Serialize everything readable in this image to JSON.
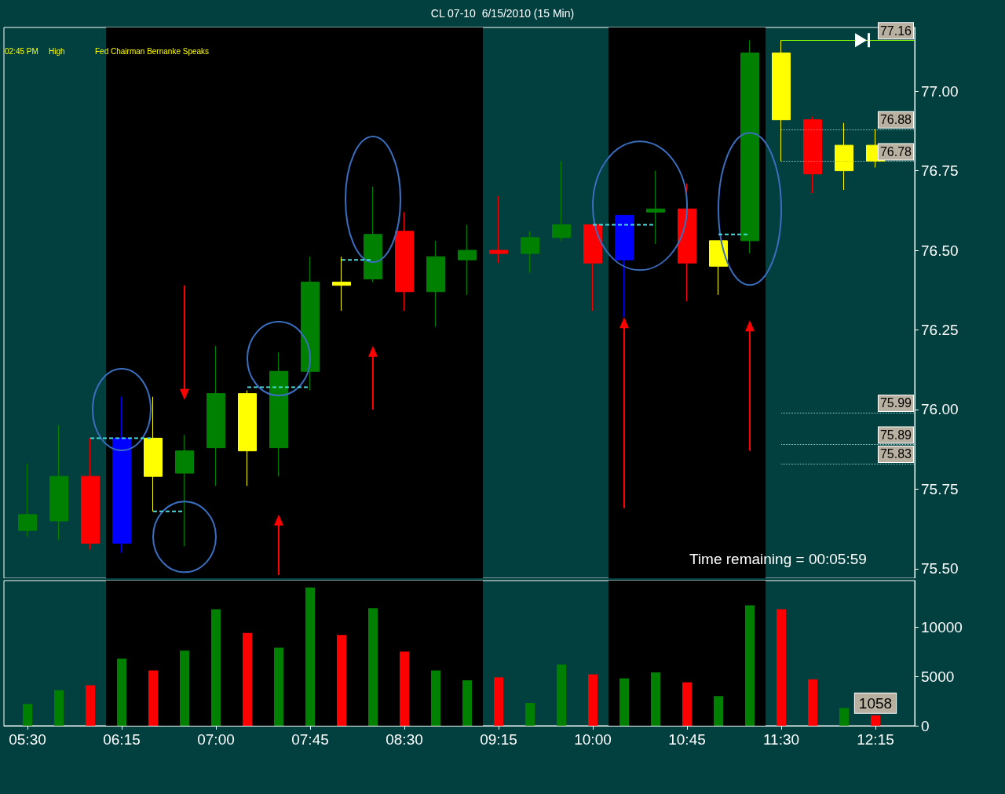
{
  "chart_data": [
    {
      "type": "candlestick",
      "title": "CL 07-10  6/15/2010 (15 Min)",
      "annotations": [
        "02:45 PM",
        "High",
        "Fed Chairman Bernanke Speaks",
        "Time remaining = 00:05:59"
      ],
      "x": [
        5.5,
        5.75,
        6,
        6.25,
        6.5,
        6.75,
        7,
        7.25,
        7.5,
        7.75,
        8,
        8.25,
        8.5,
        8.75,
        9,
        9.25,
        9.5,
        9.75,
        10,
        10.25,
        10.5,
        10.75,
        11,
        11.25,
        11.5,
        11.75,
        12,
        12.25
      ],
      "ohlc": [
        [
          75.62,
          75.83,
          75.6,
          75.67
        ],
        [
          75.65,
          75.95,
          75.59,
          75.79
        ],
        [
          75.79,
          75.91,
          75.56,
          75.58
        ],
        [
          75.58,
          76.04,
          75.55,
          75.91
        ],
        [
          75.91,
          76.04,
          75.68,
          75.79
        ],
        [
          75.8,
          75.92,
          75.57,
          75.87
        ],
        [
          75.88,
          76.2,
          75.76,
          76.05
        ],
        [
          76.05,
          76.06,
          75.76,
          75.87
        ],
        [
          75.88,
          76.18,
          75.79,
          76.12
        ],
        [
          76.12,
          76.48,
          76.06,
          76.4
        ],
        [
          76.4,
          76.48,
          76.31,
          76.39
        ],
        [
          76.41,
          76.7,
          76.4,
          76.55
        ],
        [
          76.56,
          76.62,
          76.31,
          76.37
        ],
        [
          76.37,
          76.53,
          76.26,
          76.48
        ],
        [
          76.47,
          76.58,
          76.36,
          76.5
        ],
        [
          76.5,
          76.67,
          76.46,
          76.49
        ],
        [
          76.49,
          76.56,
          76.43,
          76.54
        ],
        [
          76.54,
          76.78,
          76.53,
          76.58
        ],
        [
          76.58,
          76.58,
          76.31,
          76.46
        ],
        [
          76.47,
          76.61,
          76.29,
          76.61
        ],
        [
          76.62,
          76.75,
          76.52,
          76.63
        ],
        [
          76.63,
          76.71,
          76.34,
          76.46
        ],
        [
          76.45,
          76.53,
          76.36,
          76.53
        ],
        [
          76.53,
          77.16,
          76.49,
          77.12
        ],
        [
          77.12,
          77.16,
          76.78,
          76.91
        ],
        [
          76.91,
          76.92,
          76.68,
          76.74
        ],
        [
          76.75,
          76.9,
          76.69,
          76.83
        ],
        [
          76.83,
          76.88,
          76.76,
          76.78
        ]
      ],
      "colors": [
        "#008000",
        "#008000",
        "#ff0000",
        "#0000ff",
        "#ffff00",
        "#008000",
        "#008000",
        "#ffff00",
        "#008000",
        "#008000",
        "#ffff00",
        "#008000",
        "#ff0000",
        "#008000",
        "#008000",
        "#ff0000",
        "#008000",
        "#008000",
        "#ff0000",
        "#0000ff",
        "#008000",
        "#ff0000",
        "#ffff00",
        "#008000",
        "#ffff00",
        "#ff0000",
        "#ffff00",
        "#ffff00"
      ],
      "xlim": [
        5.3125,
        12.5625
      ],
      "ylim": [
        75.47,
        77.2
      ],
      "yticks": [
        {
          "value": 75.5,
          "label": "75.50"
        },
        75.75,
        {
          "value": 76,
          "label": "76.00"
        },
        76.25,
        {
          "value": 76.5,
          "label": "76.50"
        },
        76.75,
        {
          "value": 77,
          "label": "77.00"
        }
      ],
      "tick_labels": "y",
      "ref_lines": [
        {
          "axis": "y",
          "value": 77.16,
          "label": "77.16",
          "color": "#7fff00",
          "line_style": "solid"
        },
        {
          "axis": "y",
          "value": 76.88,
          "label": "76.88",
          "color": "#00ffff",
          "line_style": "dotted"
        },
        {
          "axis": "y",
          "value": 76.78,
          "label": "76.78",
          "color": "#00ffff",
          "line_style": "dotted"
        },
        {
          "axis": "y",
          "value": 75.99,
          "label": "75.99",
          "color": "#7fff00",
          "line_style": "dotted"
        },
        {
          "axis": "y",
          "value": 75.89,
          "label": "75.89",
          "color": "#7fff00",
          "line_style": "dotted"
        },
        {
          "axis": "y",
          "value": 75.83,
          "label": "75.83",
          "color": "#00ffff",
          "line_style": "dotted"
        }
      ],
      "bands": [
        {
          "axis": "x",
          "from": 6.125,
          "to": 9.125,
          "color": "#000000"
        },
        {
          "axis": "x",
          "from": 10.125,
          "to": 11.375,
          "color": "#000000"
        }
      ]
    },
    {
      "type": "bar",
      "x": [
        5.5,
        5.75,
        6,
        6.25,
        6.5,
        6.75,
        7,
        7.25,
        7.5,
        7.75,
        8,
        8.25,
        8.5,
        8.75,
        9,
        9.25,
        9.5,
        9.75,
        10,
        10.25,
        10.5,
        10.75,
        11,
        11.25,
        11.5,
        11.75,
        12,
        12.25
      ],
      "values": [
        2200,
        3600,
        4100,
        6800,
        5600,
        7600,
        11800,
        9400,
        7900,
        14000,
        9200,
        11900,
        7500,
        5600,
        4600,
        4900,
        2300,
        6200,
        5200,
        4800,
        5400,
        4400,
        3000,
        12200,
        11800,
        4700,
        1800,
        1058
      ],
      "value_labels": [
        null,
        null,
        null,
        null,
        null,
        null,
        null,
        null,
        null,
        null,
        null,
        null,
        null,
        null,
        null,
        null,
        null,
        null,
        null,
        null,
        null,
        null,
        null,
        null,
        null,
        null,
        null,
        "1058"
      ],
      "colors": [
        "#008000",
        "#008000",
        "#ff0000",
        "#008000",
        "#ff0000",
        "#008000",
        "#008000",
        "#ff0000",
        "#008000",
        "#008000",
        "#ff0000",
        "#008000",
        "#ff0000",
        "#008000",
        "#008000",
        "#ff0000",
        "#008000",
        "#008000",
        "#ff0000",
        "#008000",
        "#008000",
        "#ff0000",
        "#008000",
        "#008000",
        "#ff0000",
        "#ff0000",
        "#008000",
        "#ff0000"
      ],
      "xlim": [
        5.3125,
        12.5625
      ],
      "xticks": [
        {
          "value": 5.5,
          "label": "05:30"
        },
        {
          "value": 6.25,
          "label": "06:15"
        },
        {
          "value": 7,
          "label": "07:00"
        },
        {
          "value": 7.75,
          "label": "07:45"
        },
        {
          "value": 8.5,
          "label": "08:30"
        },
        {
          "value": 9.25,
          "label": "09:15"
        },
        {
          "value": 10,
          "label": "10:00"
        },
        {
          "value": 10.75,
          "label": "10:45"
        },
        {
          "value": 11.5,
          "label": "11:30"
        },
        {
          "value": 12.25,
          "label": "12:15"
        }
      ],
      "ylim": [
        0,
        14700
      ],
      "yticks": [
        0,
        5000,
        10000
      ],
      "bands": [
        {
          "axis": "x",
          "from": 6.125,
          "to": 9.125,
          "color": "#000000"
        },
        {
          "axis": "x",
          "from": 10.125,
          "to": 11.375,
          "color": "#000000"
        }
      ]
    }
  ]
}
